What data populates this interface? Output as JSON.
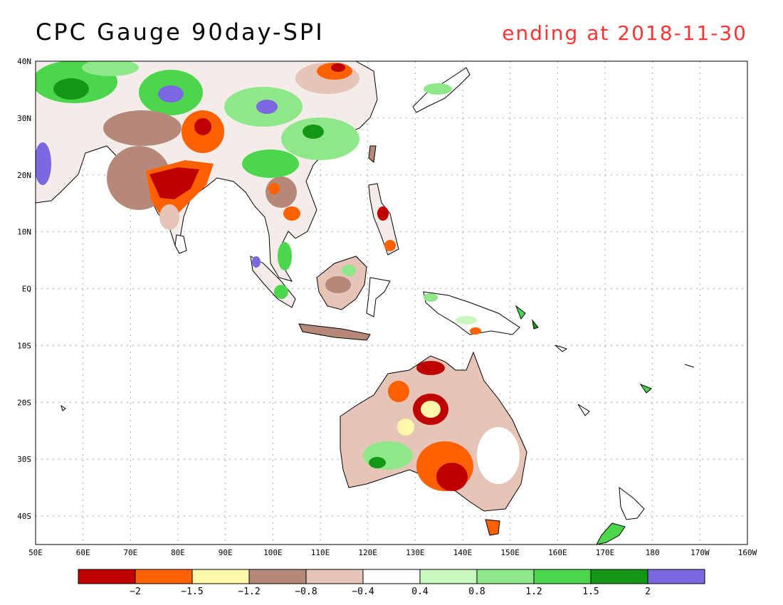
{
  "title": "CPC Gauge 90day-SPI",
  "subtitle": "ending at 2018-11-30",
  "map": {
    "lon_range": [
      50,
      200
    ],
    "lat_range": [
      -45,
      40
    ],
    "lon_ticks": [
      {
        "lon": 50,
        "label": "50E"
      },
      {
        "lon": 60,
        "label": "60E"
      },
      {
        "lon": 70,
        "label": "70E"
      },
      {
        "lon": 80,
        "label": "80E"
      },
      {
        "lon": 90,
        "label": "90E"
      },
      {
        "lon": 100,
        "label": "100E"
      },
      {
        "lon": 110,
        "label": "110E"
      },
      {
        "lon": 120,
        "label": "120E"
      },
      {
        "lon": 130,
        "label": "130E"
      },
      {
        "lon": 140,
        "label": "140E"
      },
      {
        "lon": 150,
        "label": "150E"
      },
      {
        "lon": 160,
        "label": "160E"
      },
      {
        "lon": 170,
        "label": "170E"
      },
      {
        "lon": 180,
        "label": "180"
      },
      {
        "lon": 190,
        "label": "170W"
      },
      {
        "lon": 200,
        "label": "160W"
      }
    ],
    "lat_ticks": [
      {
        "lat": 40,
        "label": "40N"
      },
      {
        "lat": 30,
        "label": "30N"
      },
      {
        "lat": 20,
        "label": "20N"
      },
      {
        "lat": 10,
        "label": "10N"
      },
      {
        "lat": 0,
        "label": "EQ"
      },
      {
        "lat": -10,
        "label": "10S"
      },
      {
        "lat": -20,
        "label": "20S"
      },
      {
        "lat": -30,
        "label": "30S"
      },
      {
        "lat": -40,
        "label": "40S"
      }
    ]
  },
  "colorbar": {
    "colors": [
      "#c00000",
      "#ff6000",
      "#fff7aa",
      "#b5887a",
      "#e6c4b8",
      "#ffffff",
      "#c8f7c0",
      "#8ee88a",
      "#4cd64c",
      "#159615",
      "#7b68e0"
    ],
    "labels": [
      "−2",
      "−1.5",
      "−1.2",
      "−0.8",
      "−0.4",
      "0.4",
      "0.8",
      "1.2",
      "1.5",
      "2"
    ]
  }
}
